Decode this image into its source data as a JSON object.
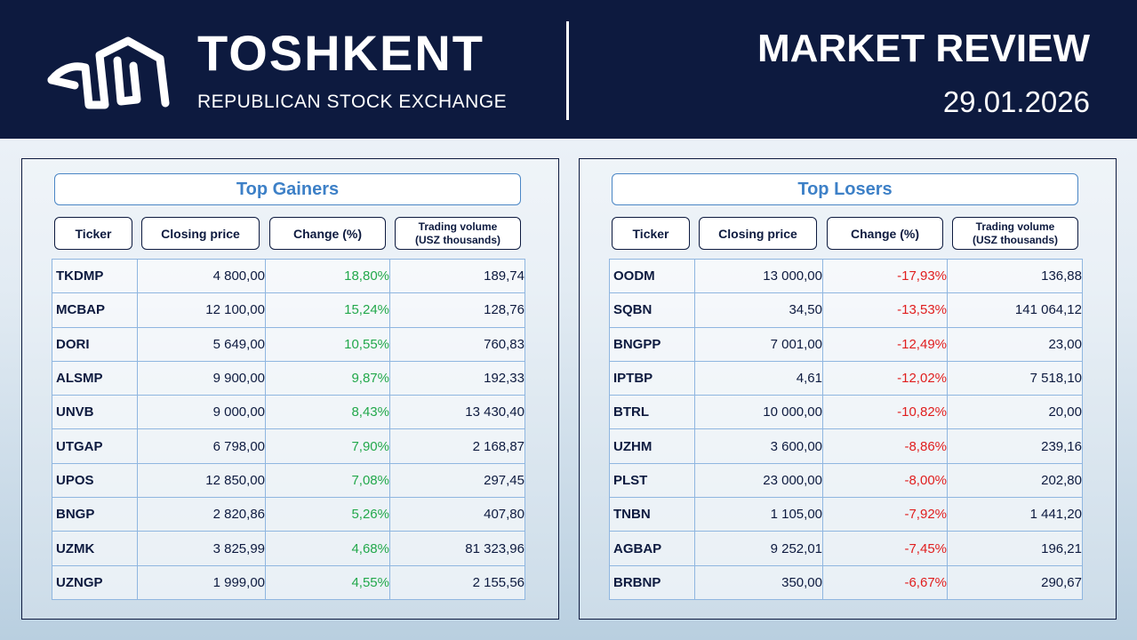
{
  "header": {
    "brand_title": "TOSHKENT",
    "brand_subtitle": "REPUBLICAN STOCK EXCHANGE",
    "review_title": "MARKET REVIEW",
    "date": "29.01.2026"
  },
  "colors": {
    "header_bg": "#0d1a3f",
    "title_blue": "#3d80c7",
    "gain_green": "#22a84b",
    "loss_red": "#e01e1e"
  },
  "columns": {
    "ticker": "Ticker",
    "closing_price": "Closing price",
    "change": "Change (%)",
    "volume_line1": "Trading volume",
    "volume_line2": "(USZ thousands)"
  },
  "gainers": {
    "title": "Top Gainers",
    "rows": [
      {
        "ticker": "TKDMP",
        "price": "4 800,00",
        "change": "18,80%",
        "volume": "189,74"
      },
      {
        "ticker": "MCBAP",
        "price": "12 100,00",
        "change": "15,24%",
        "volume": "128,76"
      },
      {
        "ticker": "DORI",
        "price": "5 649,00",
        "change": "10,55%",
        "volume": "760,83"
      },
      {
        "ticker": "ALSMP",
        "price": "9 900,00",
        "change": "9,87%",
        "volume": "192,33"
      },
      {
        "ticker": "UNVB",
        "price": "9 000,00",
        "change": "8,43%",
        "volume": "13 430,40"
      },
      {
        "ticker": "UTGAP",
        "price": "6 798,00",
        "change": "7,90%",
        "volume": "2 168,87"
      },
      {
        "ticker": "UPOS",
        "price": "12 850,00",
        "change": "7,08%",
        "volume": "297,45"
      },
      {
        "ticker": "BNGP",
        "price": "2 820,86",
        "change": "5,26%",
        "volume": "407,80"
      },
      {
        "ticker": "UZMK",
        "price": "3 825,99",
        "change": "4,68%",
        "volume": "81 323,96"
      },
      {
        "ticker": "UZNGP",
        "price": "1 999,00",
        "change": "4,55%",
        "volume": "2 155,56"
      }
    ]
  },
  "losers": {
    "title": "Top Losers",
    "rows": [
      {
        "ticker": "OODM",
        "price": "13 000,00",
        "change": "-17,93%",
        "volume": "136,88"
      },
      {
        "ticker": "SQBN",
        "price": "34,50",
        "change": "-13,53%",
        "volume": "141 064,12"
      },
      {
        "ticker": "BNGPP",
        "price": "7 001,00",
        "change": "-12,49%",
        "volume": "23,00"
      },
      {
        "ticker": "IPTBP",
        "price": "4,61",
        "change": "-12,02%",
        "volume": "7 518,10"
      },
      {
        "ticker": "BTRL",
        "price": "10 000,00",
        "change": "-10,82%",
        "volume": "20,00"
      },
      {
        "ticker": "UZHM",
        "price": "3 600,00",
        "change": "-8,86%",
        "volume": "239,16"
      },
      {
        "ticker": "PLST",
        "price": "23 000,00",
        "change": "-8,00%",
        "volume": "202,80"
      },
      {
        "ticker": "TNBN",
        "price": "1 105,00",
        "change": "-7,92%",
        "volume": "1 441,20"
      },
      {
        "ticker": "AGBAP",
        "price": "9 252,01",
        "change": "-7,45%",
        "volume": "196,21"
      },
      {
        "ticker": "BRBNP",
        "price": "350,00",
        "change": "-6,67%",
        "volume": "290,67"
      }
    ]
  }
}
